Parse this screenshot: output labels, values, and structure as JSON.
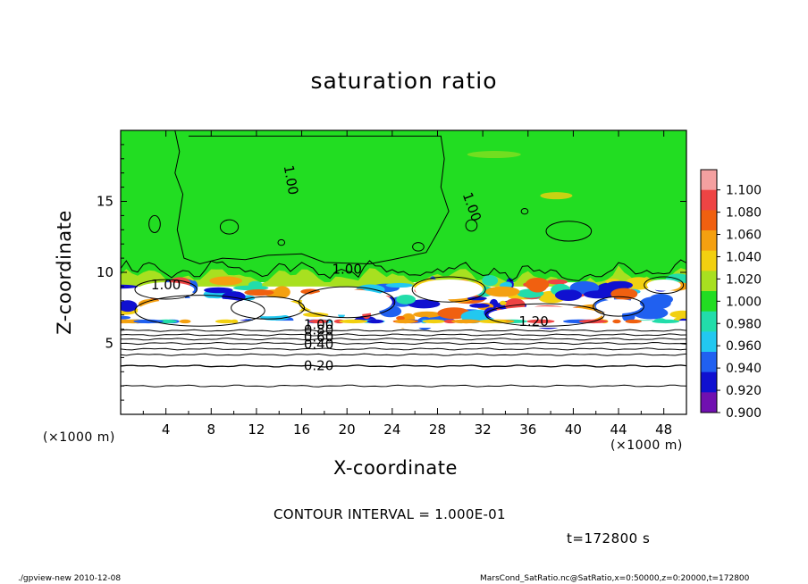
{
  "title": "saturation ratio",
  "footer": {
    "left": "./gpview-new  2010-12-08",
    "right": "MarsCond_SatRatio.nc@SatRatio,x=0:50000,z=0:20000,t=172800"
  },
  "annotations": {
    "contour_interval": "CONTOUR INTERVAL = 1.000E-01",
    "time": "t=172800 s",
    "x_unit_left": "(×1000 m)",
    "x_unit_right": "(×1000 m)"
  },
  "colors": {
    "green": "#22dd22",
    "white": "#ffffff",
    "black": "#000000"
  },
  "chart_data": {
    "type": "heatmap",
    "title": "saturation ratio",
    "xlabel": "X-coordinate",
    "ylabel": "Z-coordinate",
    "x_unit": "(×1000 m)",
    "xlim": [
      0,
      50
    ],
    "ylim": [
      0,
      20
    ],
    "x_ticks": [
      4,
      8,
      12,
      16,
      20,
      24,
      28,
      32,
      36,
      40,
      44,
      48
    ],
    "y_ticks": [
      5,
      10,
      15
    ],
    "colorbar": {
      "levels": [
        "1.100",
        "1.080",
        "1.060",
        "1.040",
        "1.020",
        "1.000",
        "0.980",
        "0.960",
        "0.940",
        "0.920",
        "0.900"
      ],
      "colors": [
        "#f4a0a0",
        "#ee4444",
        "#f06010",
        "#f4a010",
        "#f2d010",
        "#a8e020",
        "#22dd22",
        "#22ddaa",
        "#22c8f0",
        "#2060f0",
        "#1010d0",
        "#7010b0"
      ]
    },
    "contour_labels": [
      {
        "text": "1.00",
        "x": 15.0,
        "z": 16.5,
        "angle": 80
      },
      {
        "text": "1.00",
        "x": 31.0,
        "z": 14.6,
        "angle": 70
      },
      {
        "text": "1.00",
        "x": 20.0,
        "z": 10.2,
        "angle": 0
      },
      {
        "text": "1.00",
        "x": 4.0,
        "z": 9.1,
        "angle": 0
      },
      {
        "text": "1.00",
        "x": 17.5,
        "z": 6.3,
        "angle": 0
      },
      {
        "text": "1.20",
        "x": 36.5,
        "z": 6.5,
        "angle": 0
      },
      {
        "text": "0.80",
        "x": 17.5,
        "z": 5.9,
        "angle": 0
      },
      {
        "text": "0.60",
        "x": 17.5,
        "z": 5.4,
        "angle": 0
      },
      {
        "text": "0.40",
        "x": 17.5,
        "z": 4.9,
        "angle": 0
      },
      {
        "text": "0.20",
        "x": 17.5,
        "z": 3.4,
        "angle": 0
      }
    ],
    "contour_interval": 0.1,
    "time": "t=172800 s"
  }
}
